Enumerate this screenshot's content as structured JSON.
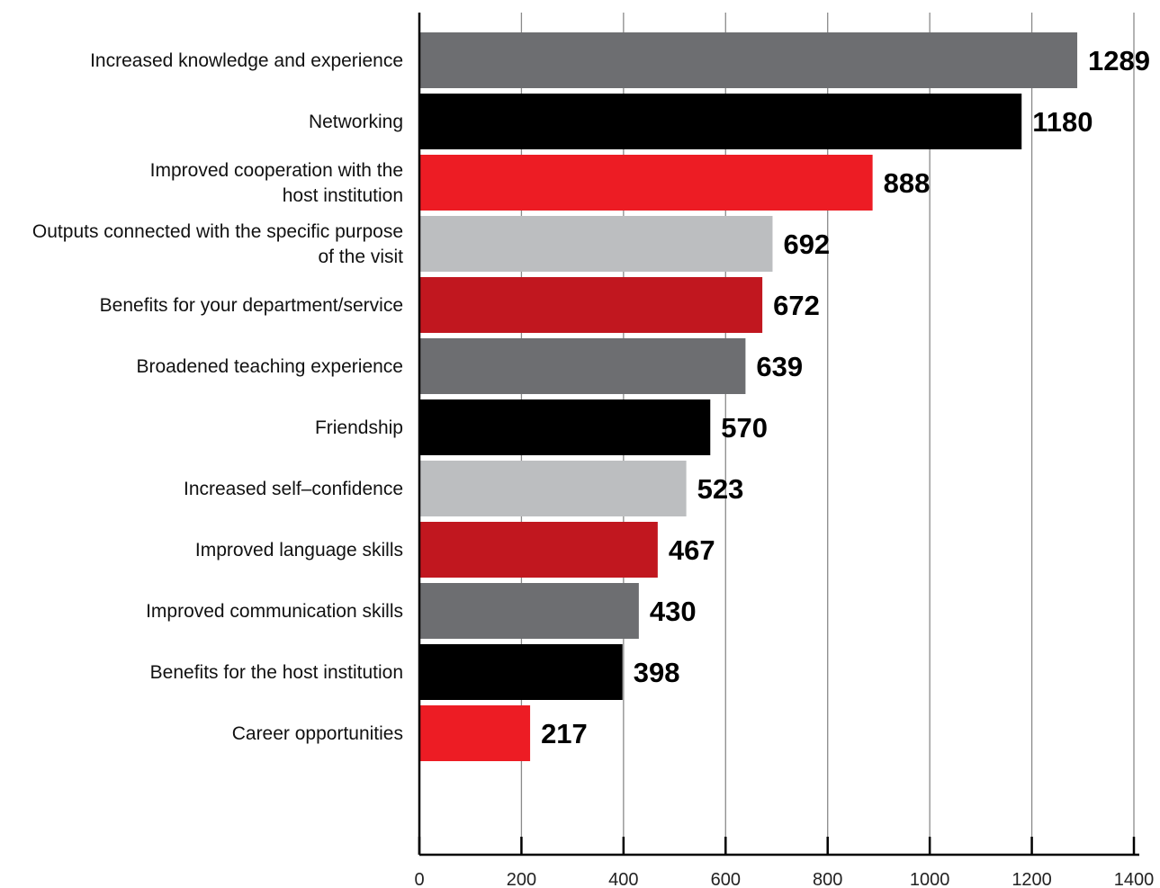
{
  "chart_data": {
    "type": "bar",
    "orientation": "horizontal",
    "categories": [
      "Increased knowledge and experience",
      "Networking",
      "Improved cooperation with the host institution",
      "Outputs connected with the specific purpose of the visit",
      "Benefits for your department/service",
      "Broadened  teaching experience",
      "Friendship",
      "Increased self–confidence",
      "Improved language skills",
      "Improved communication skills",
      "Benefits for the host institution",
      "Career opportunities"
    ],
    "category_lines": [
      [
        "Increased knowledge and experience"
      ],
      [
        "Networking"
      ],
      [
        "Improved cooperation with the",
        "host institution"
      ],
      [
        "Outputs connected with the specific purpose",
        "of the visit"
      ],
      [
        "Benefits for your department/service"
      ],
      [
        "Broadened  teaching experience"
      ],
      [
        "Friendship"
      ],
      [
        "Increased self–confidence"
      ],
      [
        "Improved language skills"
      ],
      [
        "Improved communication skills"
      ],
      [
        "Benefits for the host institution"
      ],
      [
        "Career opportunities"
      ]
    ],
    "values": [
      1289,
      1180,
      888,
      692,
      672,
      639,
      570,
      523,
      467,
      430,
      398,
      217
    ],
    "value_labels": [
      "1289",
      "1180",
      "888",
      "692",
      "672",
      "639",
      "570",
      "523",
      "467",
      "430",
      "398",
      "217"
    ],
    "bar_colors": [
      "#6d6e71",
      "#000000",
      "#ed1c24",
      "#bcbec0",
      "#c1171f",
      "#6d6e71",
      "#000000",
      "#bcbec0",
      "#c1171f",
      "#6d6e71",
      "#000000",
      "#ed1c24"
    ],
    "x_ticks": [
      0,
      200,
      400,
      600,
      800,
      1000,
      1200,
      1400
    ],
    "x_tick_labels": [
      "0",
      "200",
      "400",
      "600",
      "800",
      "1000",
      "1200",
      "1400"
    ],
    "xlim": [
      0,
      1400
    ],
    "grid": true,
    "gridline_color": "#8a8a8a",
    "axis_color": "#000000",
    "title": "",
    "xlabel": "",
    "ylabel": "",
    "legend": "none"
  }
}
